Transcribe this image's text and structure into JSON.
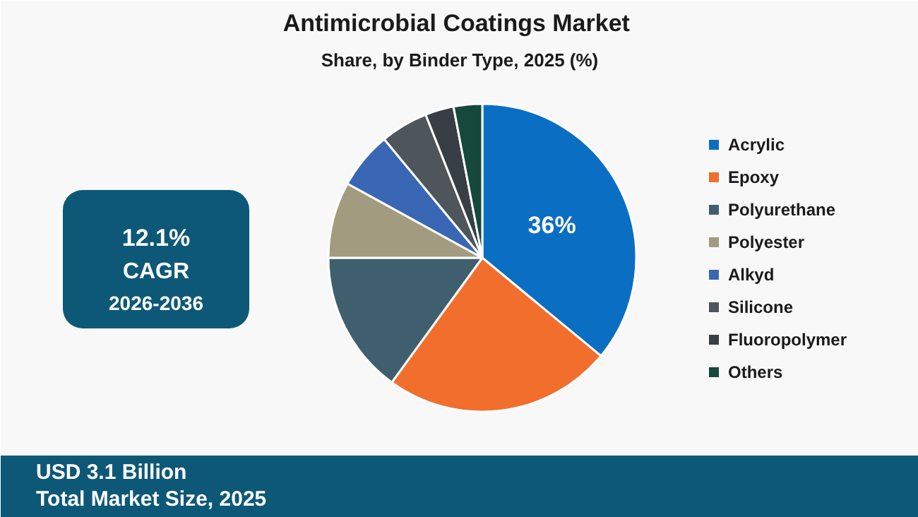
{
  "chart_data": {
    "type": "pie",
    "title": "Antimicrobial Coatings  Market",
    "subtitle": "Share, by Binder Type, 2025 (%)",
    "categories": [
      "Acrylic",
      "Epoxy",
      "Polyurethane",
      "Polyester",
      "Alkyd",
      "Silicone",
      "Fluoropolymer",
      "Others"
    ],
    "values": [
      36,
      24,
      15,
      8,
      6,
      5,
      3,
      3
    ],
    "colors": [
      "#0a6fc2",
      "#f26e2c",
      "#3f5f6e",
      "#a39b7f",
      "#3a67b4",
      "#4e555b",
      "#383f44",
      "#17483c"
    ],
    "value_labels": [
      "36%",
      null,
      null,
      null,
      null,
      null,
      null,
      null
    ],
    "legend": "right",
    "annotations": [
      "12.1%",
      "CAGR",
      "2026-2036",
      "USD 3.1 Billion",
      "Total Market Size, 2025"
    ]
  }
}
